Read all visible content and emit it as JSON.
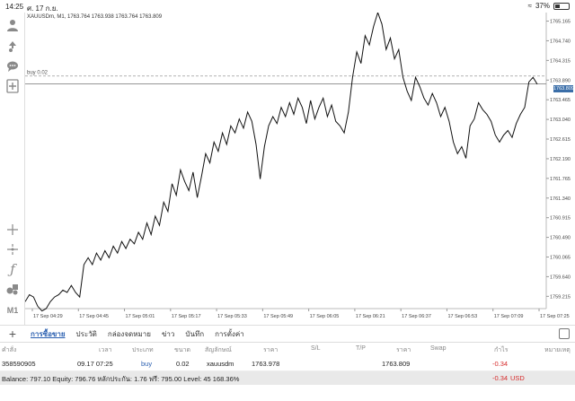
{
  "status": {
    "time": "14:25",
    "date": "ศ. 17 ก.ย.",
    "battery": "37%"
  },
  "chart": {
    "title": "XAUUSDm, M1, 1763.764 1763.938 1763.764 1763.809",
    "order_line_label": "buy 0.02",
    "current_price_tag": "1763.809"
  },
  "toolbar": {
    "timeframe": "M1"
  },
  "chart_data": {
    "type": "line",
    "title": "XAUUSDm, M1, 1763.764 1763.938 1763.764 1763.809",
    "x_ticks": [
      "17 Sep 04:29",
      "17 Sep 04:45",
      "17 Sep 05:01",
      "17 Sep 05:17",
      "17 Sep 05:33",
      "17 Sep 05:49",
      "17 Sep 06:05",
      "17 Sep 06:21",
      "17 Sep 06:37",
      "17 Sep 06:53",
      "17 Sep 07:09",
      "17 Sep 07:25"
    ],
    "y_ticks": [
      "1765.165",
      "1764.740",
      "1764.315",
      "1763.890",
      "1763.465",
      "1763.040",
      "1762.615",
      "1762.190",
      "1761.765",
      "1761.340",
      "1760.915",
      "1760.490",
      "1760.065",
      "1759.640",
      "1759.215"
    ],
    "ylim": [
      1758.95,
      1765.35
    ],
    "order_price": 1763.978,
    "current_price": 1763.809,
    "values": [
      1759.1,
      1759.25,
      1759.2,
      1759.0,
      1758.9,
      1758.95,
      1759.1,
      1759.2,
      1759.25,
      1759.35,
      1759.3,
      1759.45,
      1759.3,
      1759.2,
      1759.9,
      1760.05,
      1759.9,
      1760.15,
      1760.0,
      1760.2,
      1760.05,
      1760.3,
      1760.15,
      1760.4,
      1760.25,
      1760.45,
      1760.35,
      1760.6,
      1760.45,
      1760.8,
      1760.55,
      1760.95,
      1760.75,
      1761.25,
      1761.05,
      1761.65,
      1761.4,
      1761.95,
      1761.7,
      1761.5,
      1761.9,
      1761.35,
      1761.8,
      1762.3,
      1762.1,
      1762.55,
      1762.35,
      1762.75,
      1762.5,
      1762.9,
      1762.75,
      1763.05,
      1762.85,
      1763.2,
      1763.0,
      1762.5,
      1761.75,
      1762.45,
      1762.9,
      1763.1,
      1762.95,
      1763.3,
      1763.1,
      1763.4,
      1763.15,
      1763.5,
      1763.3,
      1762.95,
      1763.45,
      1763.05,
      1763.3,
      1763.5,
      1763.1,
      1763.35,
      1763.0,
      1762.9,
      1762.75,
      1763.2,
      1763.95,
      1764.5,
      1764.25,
      1764.85,
      1764.65,
      1765.05,
      1765.35,
      1765.1,
      1764.55,
      1764.8,
      1764.35,
      1764.55,
      1763.95,
      1763.65,
      1763.45,
      1763.95,
      1763.75,
      1763.5,
      1763.35,
      1763.6,
      1763.4,
      1763.1,
      1763.3,
      1763.0,
      1762.55,
      1762.3,
      1762.45,
      1762.2,
      1762.9,
      1763.05,
      1763.4,
      1763.25,
      1763.15,
      1763.0,
      1762.7,
      1762.55,
      1762.7,
      1762.8,
      1762.65,
      1762.95,
      1763.15,
      1763.3,
      1763.85,
      1763.95,
      1763.8
    ]
  },
  "bottom": {
    "tabs": [
      "การซื้อขาย",
      "ประวัติ",
      "กล่องจดหมาย",
      "ข่าว",
      "บันทึก",
      "การตั้งค่า"
    ],
    "columns": [
      "คำสั่ง",
      "เวลา",
      "ประเภท",
      "ขนาด",
      "สัญลักษณ์",
      "ราคา",
      "S/L",
      "T/P",
      "ราคา",
      "Swap",
      "กำไร",
      "หมายเหตุ"
    ],
    "order": {
      "ticket": "358590905",
      "time": "09.17 07:25",
      "type": "buy",
      "volume": "0.02",
      "symbol": "xauusdm",
      "open_price": "1763.978",
      "current_price": "1763.809",
      "profit": "-0.34"
    },
    "balance_text": "Balance: 797.10 Equity: 796.76 หลักประกัน: 1.76 ฟรี: 795.00 Level: 45 168.36%",
    "total_profit": "-0.34",
    "currency": "USD"
  }
}
